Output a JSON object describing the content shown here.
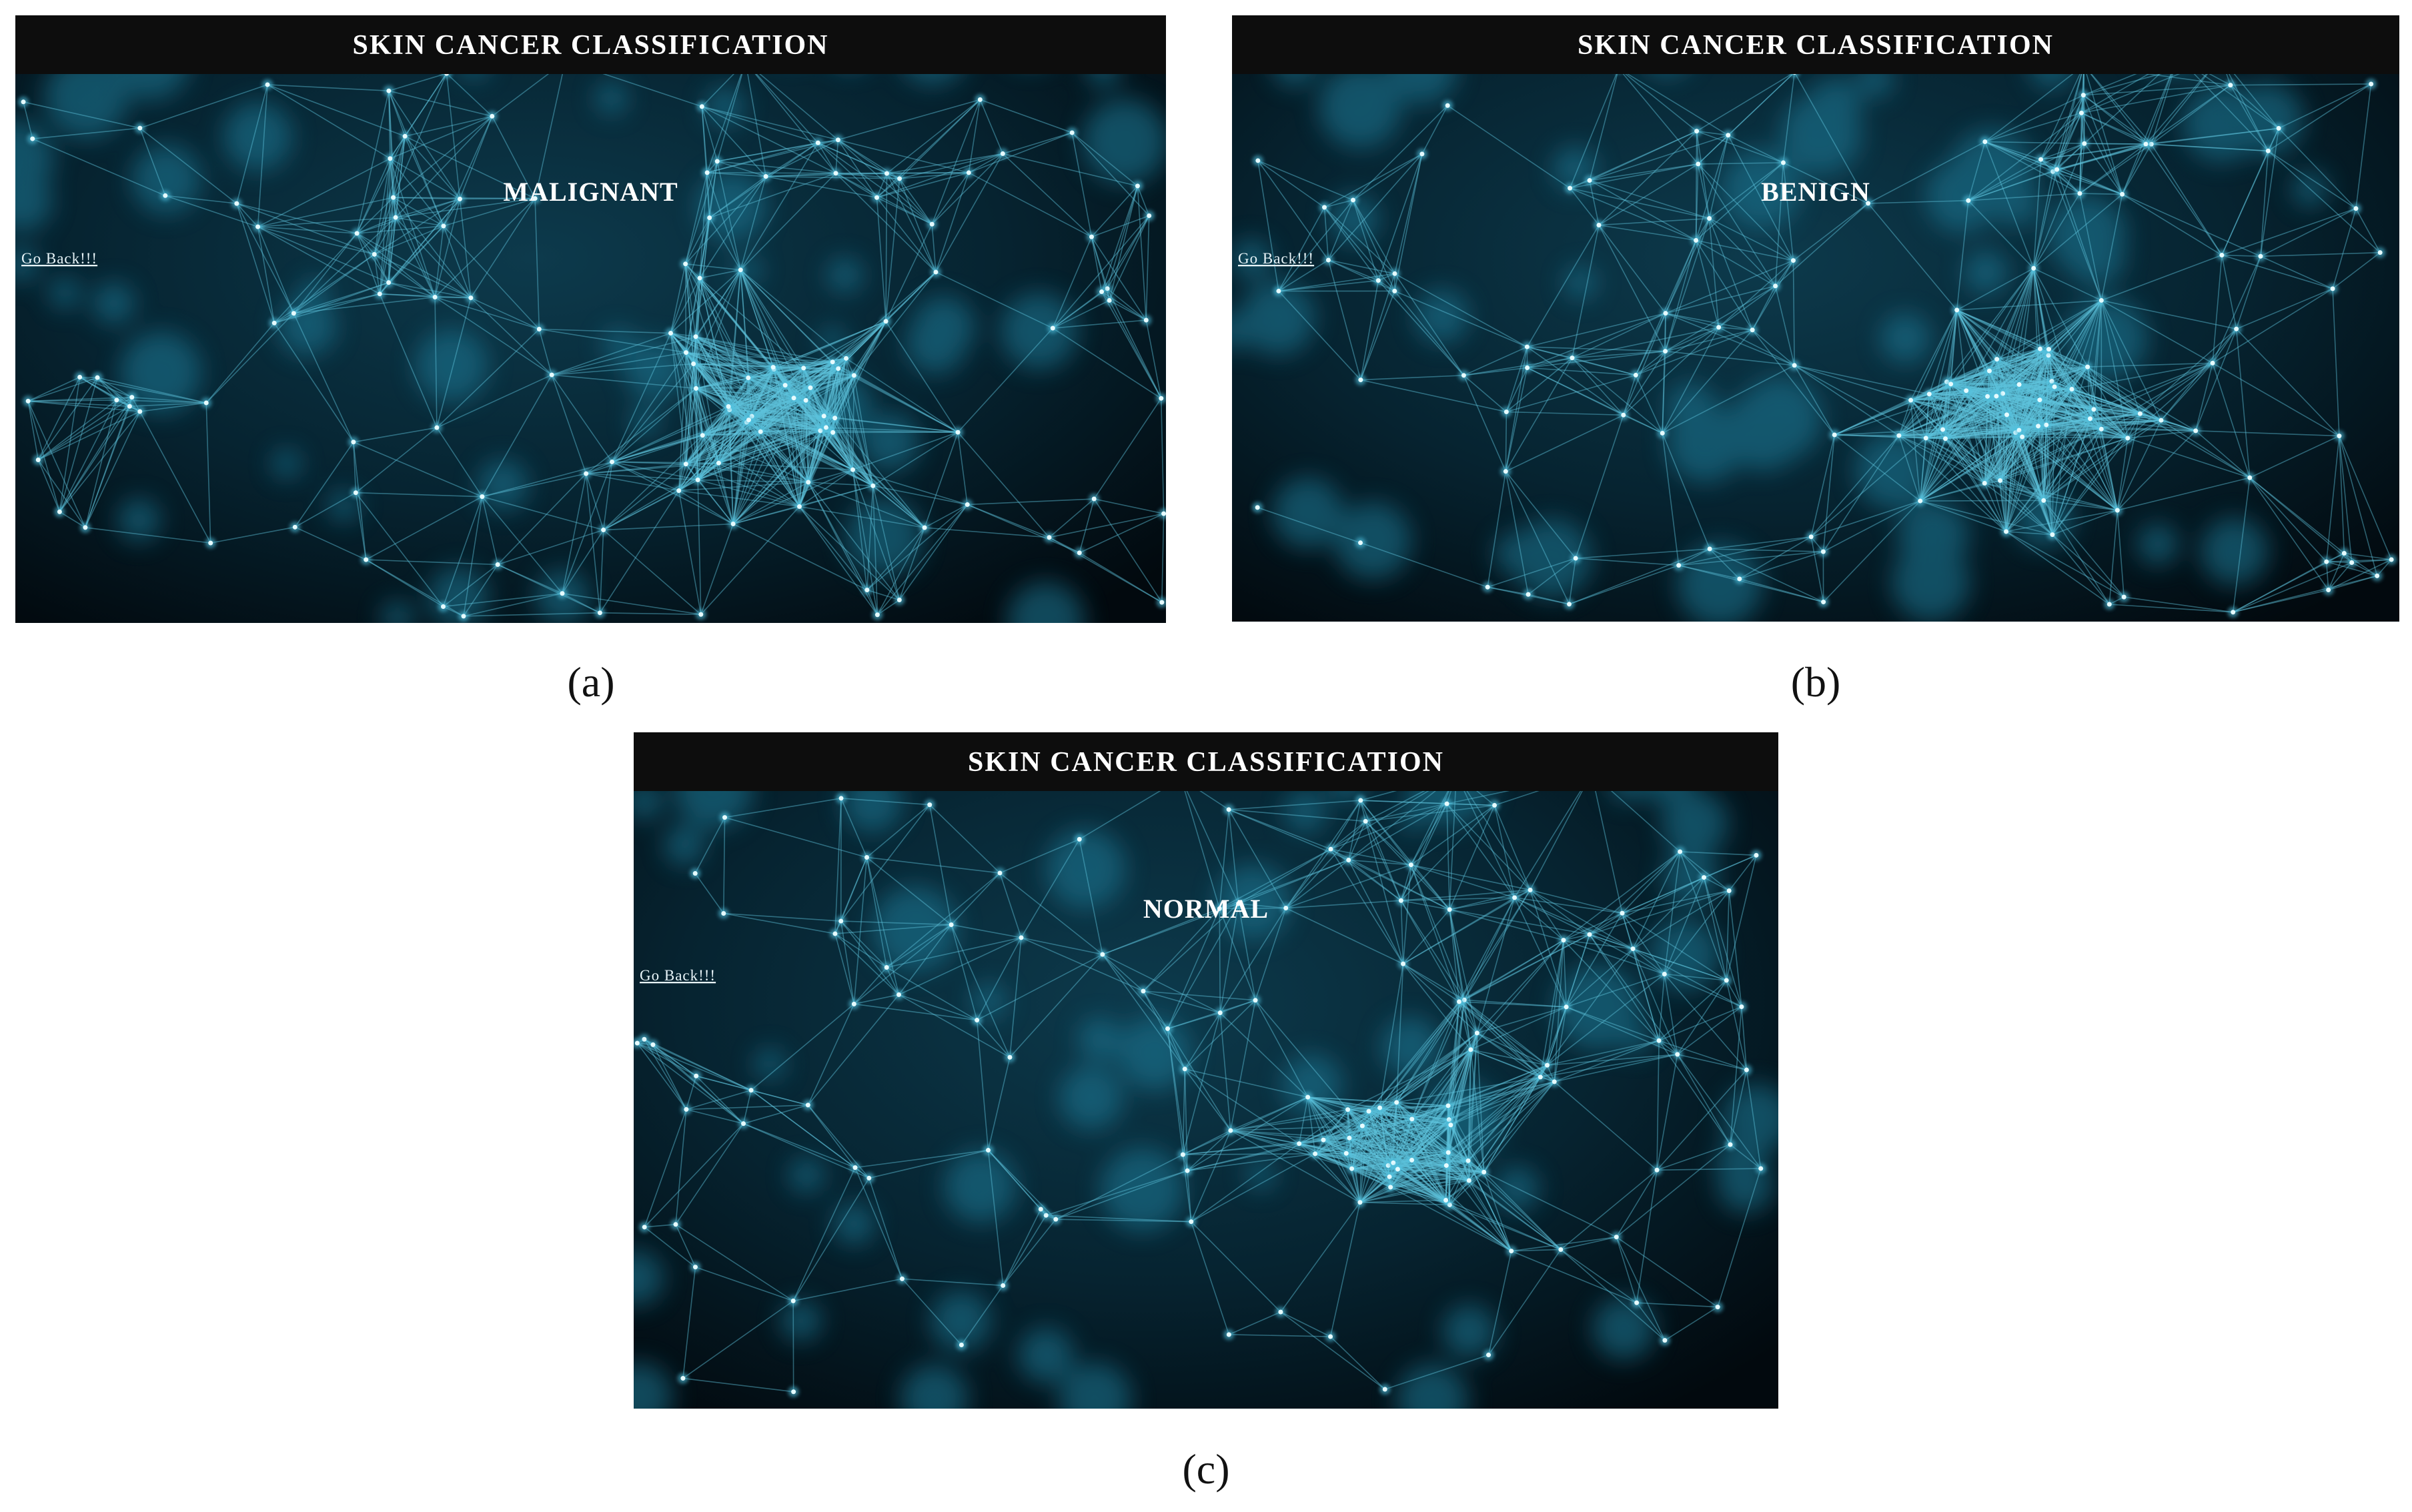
{
  "panels": [
    {
      "title": "SKIN CANCER CLASSIFICATION",
      "result": "MALIGNANT",
      "link": "Go Back!!!",
      "caption": "(a)"
    },
    {
      "title": "SKIN CANCER CLASSIFICATION",
      "result": "BENIGN",
      "link": "Go Back!!!",
      "caption": "(b)"
    },
    {
      "title": "SKIN CANCER CLASSIFICATION",
      "result": "NORMAL",
      "link": "Go Back!!!",
      "caption": "(c)"
    }
  ]
}
